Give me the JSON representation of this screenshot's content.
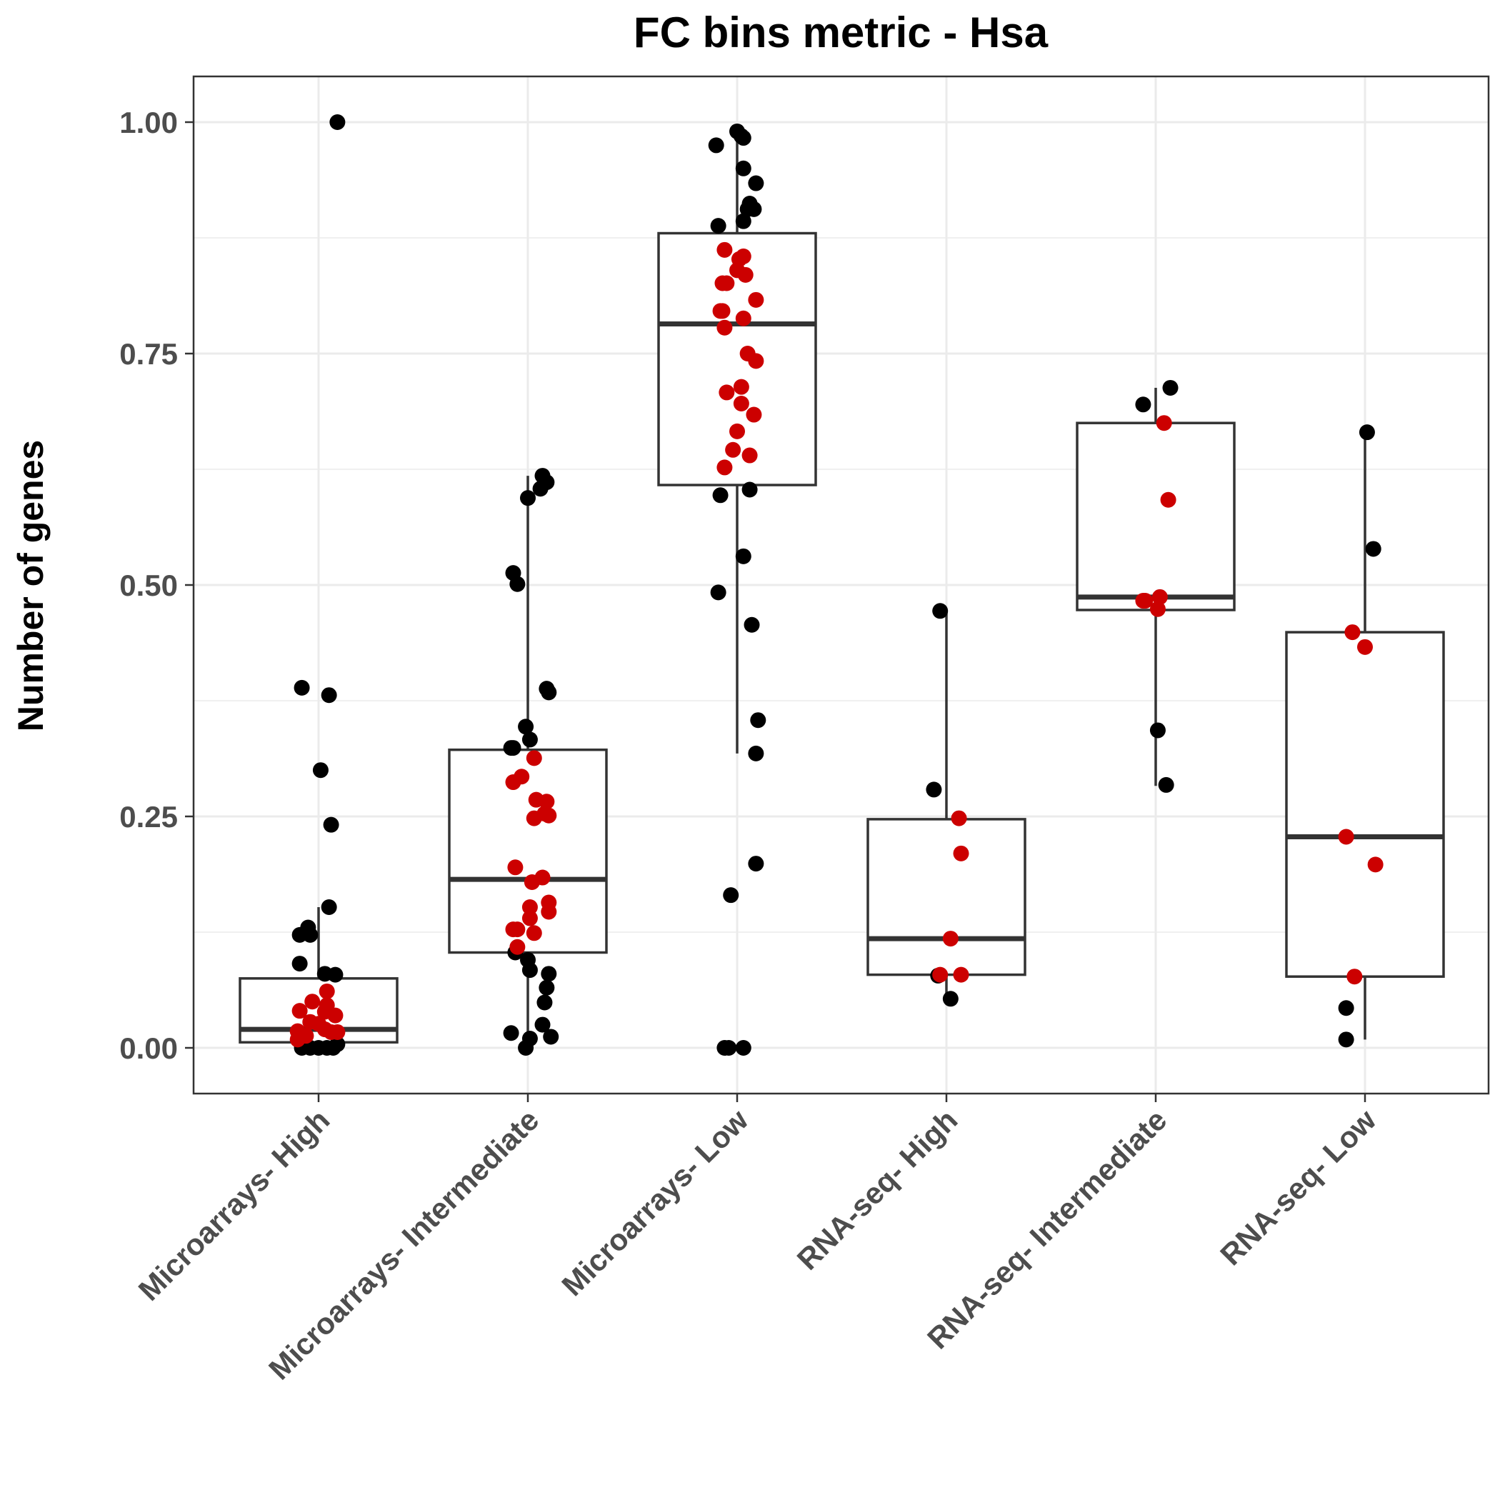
{
  "chart_data": {
    "type": "box",
    "title": "FC bins metric - Hsa",
    "xlabel": "",
    "ylabel": "Number of genes",
    "ylim": [
      -0.05,
      1.05
    ],
    "yticks": [
      "0.00",
      "0.25",
      "0.50",
      "0.75",
      "1.00"
    ],
    "ytick_values": [
      0,
      0.25,
      0.5,
      0.75,
      1.0
    ],
    "grid": true,
    "categories": [
      "Microarrays- High",
      "Microarrays- Intermediate",
      "Microarrays- Low",
      "RNA-seq- High",
      "RNA-seq- Intermediate",
      "RNA-seq- Low"
    ],
    "colors": {
      "black": "#000000",
      "red": "#cc0000",
      "box": "#333333",
      "grid": "#ebebeb"
    },
    "boxes": [
      {
        "category": "Microarrays- High",
        "whisker_low": 0.0,
        "q1": 0.006,
        "median": 0.02,
        "q3": 0.075,
        "whisker_high": 0.152
      },
      {
        "category": "Microarrays- Intermediate",
        "whisker_low": 0.0,
        "q1": 0.103,
        "median": 0.182,
        "q3": 0.322,
        "whisker_high": 0.618
      },
      {
        "category": "Microarrays- Low",
        "whisker_low": 0.318,
        "q1": 0.608,
        "median": 0.782,
        "q3": 0.88,
        "whisker_high": 0.99
      },
      {
        "category": "RNA-seq- High",
        "whisker_low": 0.053,
        "q1": 0.079,
        "median": 0.118,
        "q3": 0.247,
        "whisker_high": 0.472
      },
      {
        "category": "RNA-seq- Intermediate",
        "whisker_low": 0.283,
        "q1": 0.473,
        "median": 0.487,
        "q3": 0.675,
        "whisker_high": 0.713
      },
      {
        "category": "RNA-seq- Low",
        "whisker_low": 0.009,
        "q1": 0.077,
        "median": 0.228,
        "q3": 0.449,
        "whisker_high": 0.665
      }
    ],
    "points": [
      {
        "category": "Microarrays- High",
        "black": [
          [
            0.09,
            1.0
          ],
          [
            -0.08,
            0.389
          ],
          [
            0.05,
            0.381
          ],
          [
            0.01,
            0.3
          ],
          [
            0.06,
            0.241
          ],
          [
            0.05,
            0.152
          ],
          [
            -0.05,
            0.13
          ],
          [
            -0.09,
            0.122
          ],
          [
            -0.04,
            0.122
          ],
          [
            -0.09,
            0.091
          ],
          [
            0.03,
            0.08
          ],
          [
            0.08,
            0.079
          ],
          [
            -0.08,
            0.0
          ],
          [
            -0.04,
            0.0
          ],
          [
            0.0,
            0.0
          ],
          [
            0.04,
            0.0
          ],
          [
            0.07,
            0.0
          ],
          [
            0.09,
            0.004
          ]
        ],
        "red": [
          [
            0.04,
            0.061
          ],
          [
            -0.03,
            0.05
          ],
          [
            0.04,
            0.046
          ],
          [
            -0.09,
            0.04
          ],
          [
            0.03,
            0.039
          ],
          [
            0.08,
            0.035
          ],
          [
            -0.04,
            0.028
          ],
          [
            0.0,
            0.026
          ],
          [
            0.03,
            0.02
          ],
          [
            -0.1,
            0.018
          ],
          [
            0.06,
            0.017
          ],
          [
            0.09,
            0.017
          ],
          [
            -0.06,
            0.013
          ],
          [
            -0.1,
            0.009
          ]
        ]
      },
      {
        "category": "Microarrays- Intermediate",
        "black": [
          [
            0.07,
            0.618
          ],
          [
            0.09,
            0.611
          ],
          [
            0.06,
            0.604
          ],
          [
            0.0,
            0.594
          ],
          [
            -0.07,
            0.513
          ],
          [
            -0.05,
            0.501
          ],
          [
            0.09,
            0.388
          ],
          [
            0.1,
            0.384
          ],
          [
            -0.01,
            0.347
          ],
          [
            0.01,
            0.333
          ],
          [
            -0.08,
            0.324
          ],
          [
            -0.07,
            0.324
          ],
          [
            -0.06,
            0.103
          ],
          [
            0.0,
            0.095
          ],
          [
            0.01,
            0.084
          ],
          [
            0.1,
            0.08
          ],
          [
            0.09,
            0.065
          ],
          [
            0.08,
            0.049
          ],
          [
            0.07,
            0.025
          ],
          [
            -0.08,
            0.016
          ],
          [
            0.11,
            0.012
          ],
          [
            0.01,
            0.01
          ],
          [
            -0.01,
            0.0
          ]
        ],
        "red": [
          [
            0.03,
            0.313
          ],
          [
            -0.03,
            0.293
          ],
          [
            -0.07,
            0.287
          ],
          [
            0.04,
            0.268
          ],
          [
            0.09,
            0.266
          ],
          [
            0.08,
            0.253
          ],
          [
            0.1,
            0.251
          ],
          [
            0.03,
            0.248
          ],
          [
            -0.06,
            0.195
          ],
          [
            0.07,
            0.184
          ],
          [
            0.02,
            0.179
          ],
          [
            0.1,
            0.157
          ],
          [
            0.01,
            0.152
          ],
          [
            0.1,
            0.147
          ],
          [
            0.01,
            0.14
          ],
          [
            -0.07,
            0.128
          ],
          [
            -0.05,
            0.128
          ],
          [
            0.03,
            0.124
          ],
          [
            -0.05,
            0.109
          ]
        ]
      },
      {
        "category": "Microarrays- Low",
        "black": [
          [
            0.0,
            0.99
          ],
          [
            0.02,
            0.985
          ],
          [
            0.03,
            0.983
          ],
          [
            -0.1,
            0.975
          ],
          [
            0.03,
            0.95
          ],
          [
            0.09,
            0.934
          ],
          [
            0.06,
            0.912
          ],
          [
            0.05,
            0.906
          ],
          [
            0.08,
            0.906
          ],
          [
            0.03,
            0.893
          ],
          [
            -0.09,
            0.888
          ],
          [
            -0.08,
            0.597
          ],
          [
            0.06,
            0.603
          ],
          [
            0.03,
            0.531
          ],
          [
            -0.09,
            0.492
          ],
          [
            0.07,
            0.457
          ],
          [
            0.1,
            0.354
          ],
          [
            0.09,
            0.318
          ],
          [
            0.09,
            0.199
          ],
          [
            -0.03,
            0.165
          ],
          [
            -0.06,
            0.0
          ],
          [
            -0.04,
            0.0
          ],
          [
            0.03,
            0.0
          ]
        ],
        "red": [
          [
            -0.06,
            0.862
          ],
          [
            0.01,
            0.852
          ],
          [
            0.03,
            0.855
          ],
          [
            0.0,
            0.84
          ],
          [
            0.04,
            0.835
          ],
          [
            -0.07,
            0.826
          ],
          [
            -0.05,
            0.826
          ],
          [
            0.09,
            0.808
          ],
          [
            -0.08,
            0.796
          ],
          [
            -0.07,
            0.796
          ],
          [
            0.03,
            0.788
          ],
          [
            -0.06,
            0.778
          ],
          [
            0.05,
            0.75
          ],
          [
            0.09,
            0.742
          ],
          [
            0.02,
            0.714
          ],
          [
            -0.05,
            0.708
          ],
          [
            0.02,
            0.696
          ],
          [
            0.08,
            0.684
          ],
          [
            0.0,
            0.666
          ],
          [
            -0.02,
            0.646
          ],
          [
            0.06,
            0.64
          ],
          [
            -0.06,
            0.627
          ]
        ]
      },
      {
        "category": "RNA-seq- High",
        "black": [
          [
            -0.03,
            0.472
          ],
          [
            -0.06,
            0.279
          ],
          [
            -0.04,
            0.078
          ],
          [
            0.02,
            0.053
          ]
        ],
        "red": [
          [
            0.06,
            0.248
          ],
          [
            0.07,
            0.21
          ],
          [
            0.02,
            0.118
          ],
          [
            -0.03,
            0.079
          ],
          [
            0.07,
            0.079
          ]
        ]
      },
      {
        "category": "RNA-seq- Intermediate",
        "black": [
          [
            0.07,
            0.713
          ],
          [
            -0.06,
            0.695
          ],
          [
            0.01,
            0.343
          ],
          [
            0.05,
            0.284
          ]
        ],
        "red": [
          [
            0.04,
            0.675
          ],
          [
            0.06,
            0.592
          ],
          [
            0.02,
            0.487
          ],
          [
            -0.06,
            0.483
          ],
          [
            -0.05,
            0.483
          ],
          [
            0.01,
            0.474
          ]
        ]
      },
      {
        "category": "RNA-seq- Low",
        "black": [
          [
            0.01,
            0.665
          ],
          [
            0.04,
            0.539
          ],
          [
            -0.09,
            0.043
          ],
          [
            -0.09,
            0.009
          ]
        ],
        "red": [
          [
            -0.06,
            0.449
          ],
          [
            0.0,
            0.433
          ],
          [
            -0.09,
            0.228
          ],
          [
            0.05,
            0.198
          ],
          [
            -0.05,
            0.077
          ]
        ]
      }
    ]
  }
}
